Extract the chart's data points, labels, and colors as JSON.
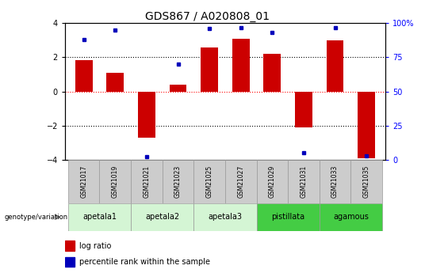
{
  "title": "GDS867 / A020808_01",
  "samples": [
    "GSM21017",
    "GSM21019",
    "GSM21021",
    "GSM21023",
    "GSM21025",
    "GSM21027",
    "GSM21029",
    "GSM21031",
    "GSM21033",
    "GSM21035"
  ],
  "log_ratios": [
    1.85,
    1.1,
    -2.7,
    0.4,
    2.6,
    3.1,
    2.2,
    -2.1,
    3.0,
    -3.9
  ],
  "percentile_ranks": [
    88,
    95,
    2,
    70,
    96,
    97,
    93,
    5,
    97,
    3
  ],
  "ylim_left": [
    -4,
    4
  ],
  "ylim_right": [
    0,
    100
  ],
  "left_yticks": [
    -4,
    -2,
    0,
    2,
    4
  ],
  "right_yticks": [
    0,
    25,
    50,
    75,
    100
  ],
  "right_yticklabels": [
    "0",
    "25",
    "50",
    "75",
    "100%"
  ],
  "hlines_black": [
    -2,
    2
  ],
  "hline_red": 0,
  "bar_color": "#cc0000",
  "dot_color": "#0000bb",
  "group_spans": [
    {
      "label": "apetala1",
      "start": 0,
      "end": 1,
      "color": "#d4f5d4"
    },
    {
      "label": "apetala2",
      "start": 2,
      "end": 3,
      "color": "#d4f5d4"
    },
    {
      "label": "apetala3",
      "start": 4,
      "end": 5,
      "color": "#d4f5d4"
    },
    {
      "label": "pistillata",
      "start": 6,
      "end": 7,
      "color": "#44cc44"
    },
    {
      "label": "agamous",
      "start": 8,
      "end": 9,
      "color": "#44cc44"
    }
  ],
  "genotype_label": "genotype/variation",
  "legend_bar_label": "log ratio",
  "legend_dot_label": "percentile rank within the sample",
  "title_fontsize": 10,
  "tick_fontsize": 7,
  "sample_label_fontsize": 5.5,
  "group_label_fontsize": 7,
  "sample_box_color": "#cccccc",
  "sample_box_edge_color": "#999999",
  "legend_fontsize": 7
}
